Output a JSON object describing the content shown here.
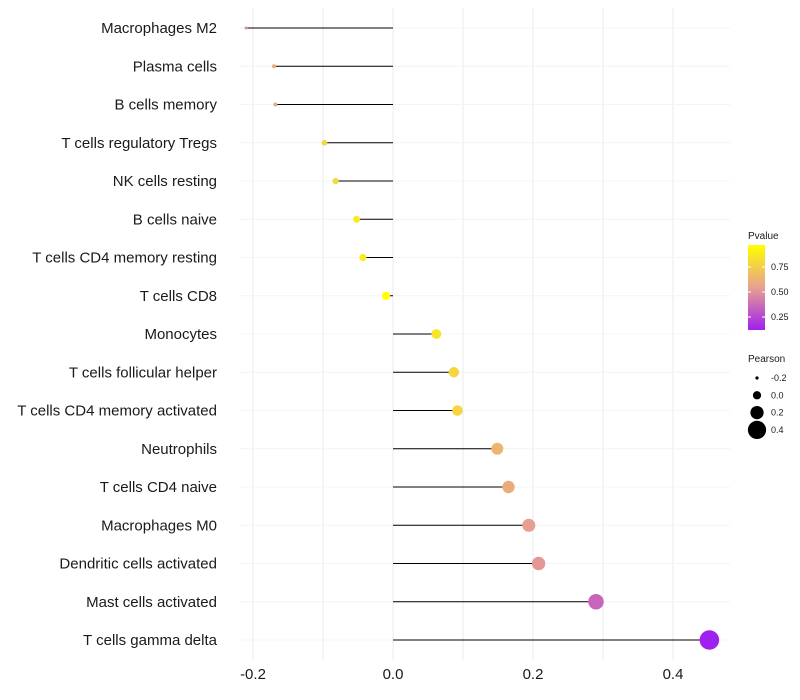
{
  "chart_data": {
    "type": "lollipop",
    "title": "",
    "xlabel": "",
    "ylabel": "",
    "xlim": [
      -0.22,
      0.47
    ],
    "xticks": [
      -0.2,
      0.0,
      0.2,
      0.4
    ],
    "xtick_labels": [
      "-0.2",
      "0.0",
      "0.2",
      "0.4"
    ],
    "baseline": 0,
    "points": [
      {
        "category": "Macrophages M2",
        "pearson": -0.21,
        "pvalue": 0.5
      },
      {
        "category": "Plasma cells",
        "pearson": -0.17,
        "pvalue": 0.6
      },
      {
        "category": "B cells memory",
        "pearson": -0.168,
        "pvalue": 0.6
      },
      {
        "category": "T cells regulatory  Tregs",
        "pearson": -0.098,
        "pvalue": 0.78
      },
      {
        "category": "NK cells resting",
        "pearson": -0.082,
        "pvalue": 0.8
      },
      {
        "category": "B cells naive",
        "pearson": -0.052,
        "pvalue": 0.88
      },
      {
        "category": "T cells CD4 memory resting",
        "pearson": -0.043,
        "pvalue": 0.88
      },
      {
        "category": "T cells CD8",
        "pearson": -0.01,
        "pvalue": 0.97
      },
      {
        "category": "Monocytes",
        "pearson": 0.062,
        "pvalue": 0.85
      },
      {
        "category": "T cells follicular helper",
        "pearson": 0.087,
        "pvalue": 0.78
      },
      {
        "category": "T cells CD4 memory activated",
        "pearson": 0.092,
        "pvalue": 0.78
      },
      {
        "category": "Neutrophils",
        "pearson": 0.149,
        "pvalue": 0.64
      },
      {
        "category": "T cells CD4 naive",
        "pearson": 0.165,
        "pvalue": 0.6
      },
      {
        "category": "Macrophages M0",
        "pearson": 0.194,
        "pvalue": 0.54
      },
      {
        "category": "Dendritic cells activated",
        "pearson": 0.208,
        "pvalue": 0.52
      },
      {
        "category": "Mast cells activated",
        "pearson": 0.29,
        "pvalue": 0.35
      },
      {
        "category": "T cells gamma delta",
        "pearson": 0.452,
        "pvalue": 0.12
      }
    ],
    "color_legend": {
      "title": "Pvalue",
      "range": [
        0.12,
        0.97
      ],
      "ticks": [
        0.25,
        0.5,
        0.75
      ],
      "tick_labels": [
        "0.25",
        "0.50",
        "0.75"
      ],
      "low_color": "#a020f0",
      "mid_color": "#e8a090",
      "high_color": "#ffff00"
    },
    "size_legend": {
      "title": "Pearson",
      "values": [
        -0.2,
        0.0,
        0.2,
        0.4
      ],
      "labels": [
        "-0.2",
        "0.0",
        "0.2",
        "0.4"
      ]
    },
    "grid": true,
    "grid_color": "#ebebeb",
    "stem_color": "#000000"
  }
}
